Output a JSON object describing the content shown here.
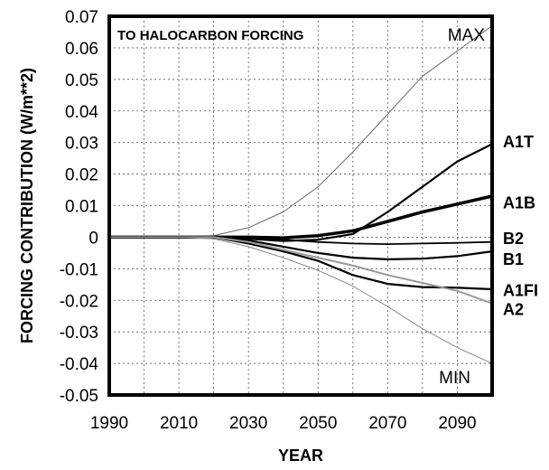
{
  "chart_data": {
    "type": "line",
    "title": "TO HALOCARBON FORCING",
    "xlabel": "YEAR",
    "ylabel": "FORCING CONTRIBUTION  (W/m**2)",
    "xlim": [
      1990,
      2100
    ],
    "ylim": [
      -0.05,
      0.07
    ],
    "x_ticks": [
      "1990",
      "2010",
      "2030",
      "2050",
      "2070",
      "2090"
    ],
    "y_ticks": [
      "0.07",
      "0.06",
      "0.05",
      "0.04",
      "0.03",
      "0.02",
      "0.01",
      "0",
      "-0.01",
      "-0.02",
      "-0.03",
      "-0.04",
      "-0.05"
    ],
    "grid": true,
    "annotations": [
      "MAX",
      "MIN"
    ],
    "x": [
      1990,
      2000,
      2010,
      2020,
      2030,
      2040,
      2050,
      2060,
      2070,
      2080,
      2090,
      2100
    ],
    "series": [
      {
        "name": "MAX",
        "color": "#666666",
        "values": [
          0,
          0,
          0,
          0.0005,
          0.003,
          0.008,
          0.016,
          0.027,
          0.039,
          0.051,
          0.059,
          0.067
        ]
      },
      {
        "name": "A1T",
        "color": "#000000",
        "values": [
          0,
          0,
          0,
          0,
          -0.0005,
          -0.0012,
          -0.0008,
          0.001,
          0.008,
          0.016,
          0.024,
          0.0295
        ]
      },
      {
        "name": "A1B",
        "color": "#000000",
        "values": [
          0,
          0,
          0,
          0,
          0,
          -0.0002,
          0.0005,
          0.002,
          0.005,
          0.008,
          0.0105,
          0.013
        ]
      },
      {
        "name": "B2",
        "color": "#000000",
        "values": [
          0,
          0,
          0,
          0,
          -0.0003,
          -0.0008,
          -0.0015,
          -0.002,
          -0.0022,
          -0.002,
          -0.0018,
          -0.0015
        ]
      },
      {
        "name": "B1",
        "color": "#000000",
        "values": [
          0,
          0,
          0,
          0,
          -0.001,
          -0.003,
          -0.005,
          -0.0065,
          -0.007,
          -0.0068,
          -0.006,
          -0.0045
        ]
      },
      {
        "name": "A1FI",
        "color": "#000000",
        "values": [
          0,
          0,
          0,
          0,
          -0.002,
          -0.0045,
          -0.0075,
          -0.012,
          -0.0148,
          -0.0158,
          -0.016,
          -0.0165
        ]
      },
      {
        "name": "A2",
        "color": "#999999",
        "values": [
          0,
          0,
          0,
          0,
          -0.0015,
          -0.004,
          -0.0065,
          -0.009,
          -0.012,
          -0.0145,
          -0.017,
          -0.021
        ]
      },
      {
        "name": "MIN",
        "color": "#888888",
        "values": [
          0,
          0,
          0,
          -0.0005,
          -0.003,
          -0.0065,
          -0.0105,
          -0.0155,
          -0.022,
          -0.029,
          -0.035,
          -0.04
        ]
      }
    ],
    "series_labels": [
      {
        "name": "A1T",
        "y": 0.0305
      },
      {
        "name": "A1B",
        "y": 0.0112
      },
      {
        "name": "B2",
        "y": -0.0001
      },
      {
        "name": "B1",
        "y": -0.0068
      },
      {
        "name": "A1FI",
        "y": -0.0166
      },
      {
        "name": "A2",
        "y": -0.0226
      }
    ]
  }
}
